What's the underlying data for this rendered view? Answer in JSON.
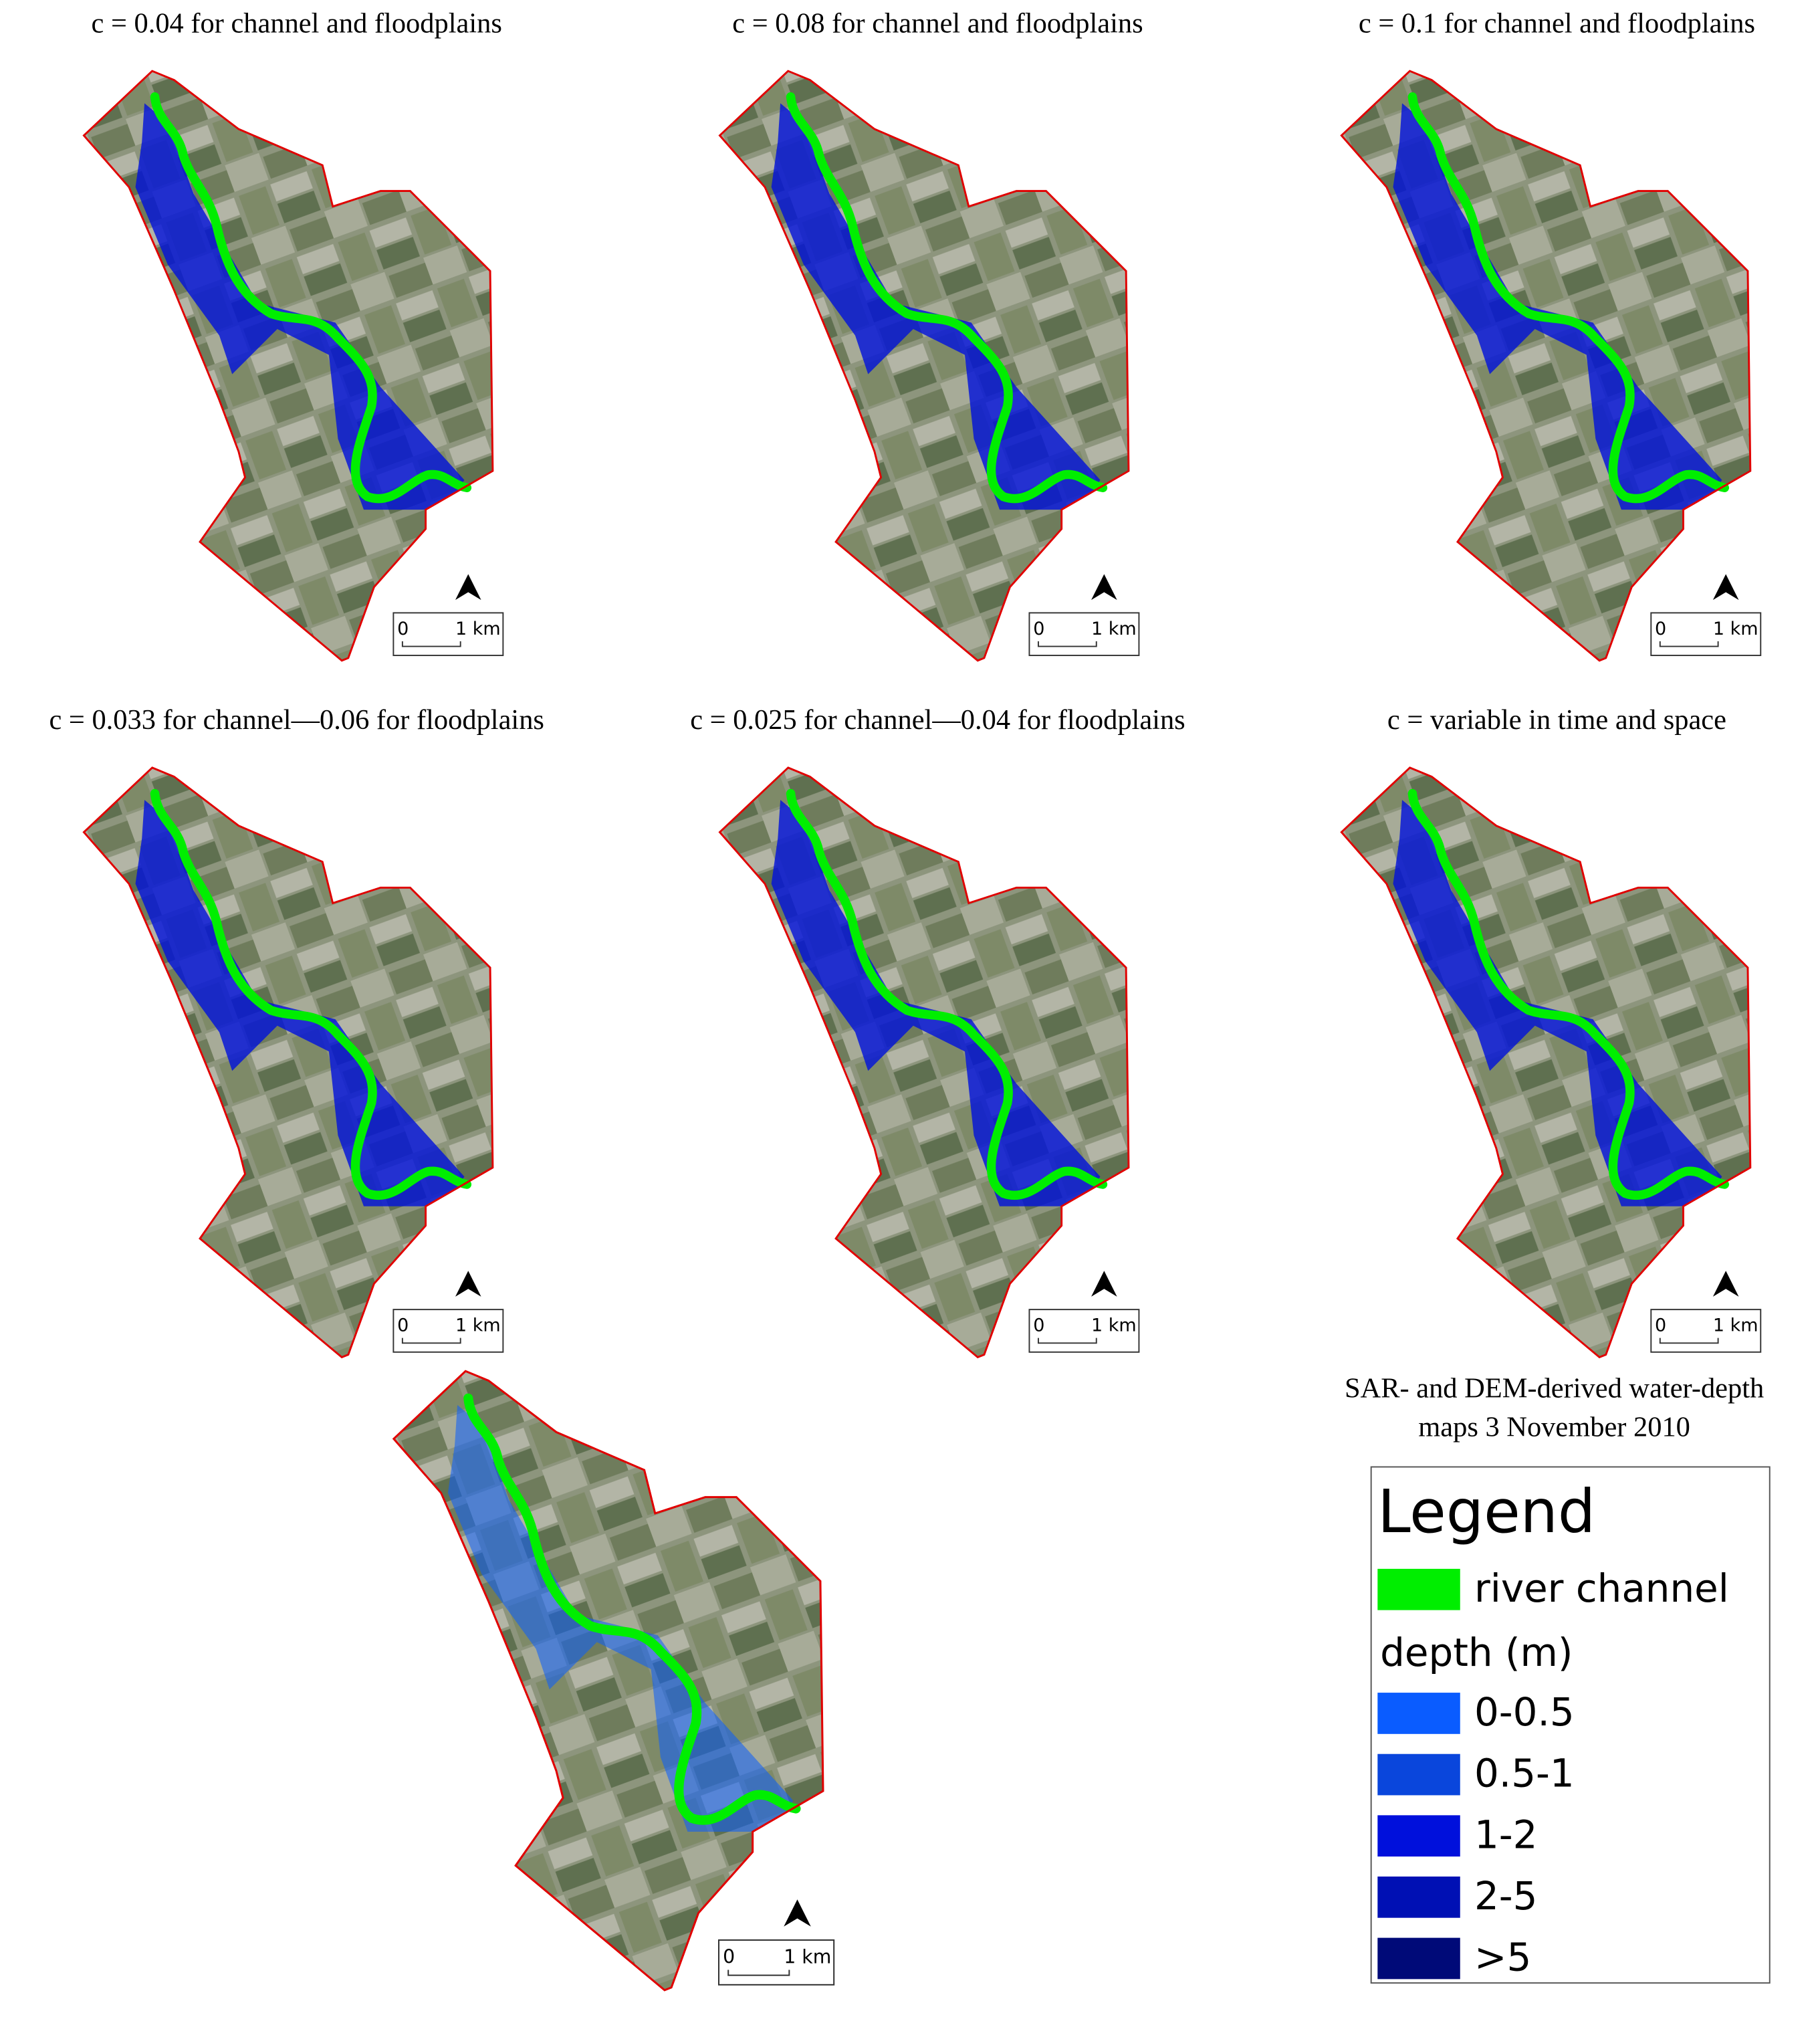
{
  "panels": [
    {
      "title": "c = 0.04 for channel and floodplains",
      "scale": {
        "start": "0",
        "end": "1 km"
      }
    },
    {
      "title": "c = 0.08 for channel and floodplains",
      "scale": {
        "start": "0",
        "end": "1 km"
      }
    },
    {
      "title": "c = 0.1 for channel and floodplains",
      "scale": {
        "start": "0",
        "end": "1 km"
      }
    },
    {
      "title": "c = 0.033 for channel—0.06 for floodplains",
      "scale": {
        "start": "0",
        "end": "1 km"
      }
    },
    {
      "title": "c = 0.025 for channel—0.04 for floodplains",
      "scale": {
        "start": "0",
        "end": "1 km"
      }
    },
    {
      "title": "c = variable in time and space",
      "scale": {
        "start": "0",
        "end": "1 km"
      }
    },
    {
      "scale": {
        "start": "0",
        "end": "1 km"
      }
    }
  ],
  "caption": [
    "SAR- and DEM-derived water-depth",
    "maps 3 November 2010"
  ],
  "legend": {
    "title": "Legend",
    "channel": {
      "label": "river channel",
      "color": "#00ee00"
    },
    "depth_title": "depth (m)",
    "depth_classes": [
      {
        "label": "0-0.5",
        "color": "#0a5cff"
      },
      {
        "label": "0.5-1",
        "color": "#0a46dc"
      },
      {
        "label": "1-2",
        "color": "#0010dc"
      },
      {
        "label": "2-5",
        "color": "#0010b4"
      },
      {
        "label": ">5",
        "color": "#000a78"
      }
    ]
  }
}
